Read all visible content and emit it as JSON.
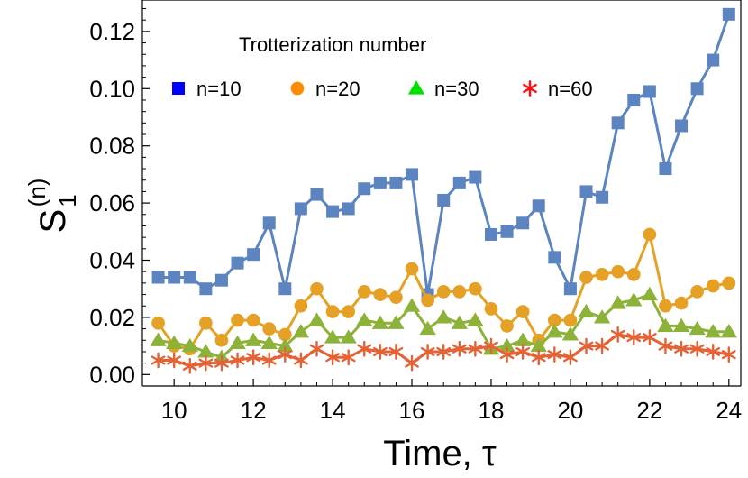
{
  "chart_data": {
    "type": "line",
    "xlabel": "Time, τ",
    "ylabel": {
      "base": "S",
      "subscript": "1",
      "superscript": "(n)"
    },
    "xlim": [
      9.2,
      24.3
    ],
    "ylim": [
      -0.004,
      0.131
    ],
    "xticks": [
      10,
      12,
      14,
      16,
      18,
      20,
      22,
      24
    ],
    "xtick_labels": [
      "10",
      "12",
      "14",
      "16",
      "18",
      "20",
      "22",
      "24"
    ],
    "yticks": [
      0.0,
      0.02,
      0.04,
      0.06,
      0.08,
      0.1,
      0.12
    ],
    "ytick_labels": [
      "0.00",
      "0.02",
      "0.04",
      "0.06",
      "0.08",
      "0.10",
      "0.12"
    ],
    "grid": false,
    "legend": {
      "title": "Trotterization number",
      "placement": "top-left"
    },
    "x": [
      9.6,
      10.0,
      10.4,
      10.8,
      11.2,
      11.6,
      12.0,
      12.4,
      12.8,
      13.2,
      13.6,
      14.0,
      14.4,
      14.8,
      15.2,
      15.6,
      16.0,
      16.4,
      16.8,
      17.2,
      17.6,
      18.0,
      18.4,
      18.8,
      19.2,
      19.6,
      20.0,
      20.4,
      20.8,
      21.2,
      21.6,
      22.0,
      22.4,
      22.8,
      23.2,
      23.6,
      24.0
    ],
    "series": [
      {
        "name": "n=10",
        "marker": "square",
        "line_color": "#5b84c0",
        "marker_color": "#5b84c0",
        "legend_marker_color": "#0000ff",
        "values": [
          0.034,
          0.034,
          0.034,
          0.03,
          0.033,
          0.039,
          0.042,
          0.053,
          0.03,
          0.058,
          0.063,
          0.057,
          0.058,
          0.065,
          0.067,
          0.067,
          0.07,
          0.028,
          0.061,
          0.067,
          0.069,
          0.049,
          0.05,
          0.053,
          0.059,
          0.041,
          0.03,
          0.064,
          0.062,
          0.088,
          0.096,
          0.099,
          0.072,
          0.087,
          0.1,
          0.11,
          0.126
        ]
      },
      {
        "name": "n=20",
        "marker": "circle",
        "line_color": "#e5a125",
        "marker_color": "#e5a125",
        "legend_marker_color": "#ff8c00",
        "values": [
          0.018,
          0.01,
          0.009,
          0.018,
          0.012,
          0.019,
          0.019,
          0.016,
          0.014,
          0.024,
          0.03,
          0.022,
          0.022,
          0.029,
          0.028,
          0.027,
          0.037,
          0.026,
          0.029,
          0.029,
          0.03,
          0.023,
          0.017,
          0.022,
          0.012,
          0.019,
          0.019,
          0.034,
          0.035,
          0.036,
          0.035,
          0.049,
          0.024,
          0.025,
          0.029,
          0.031,
          0.032
        ]
      },
      {
        "name": "n=30",
        "marker": "triangle",
        "line_color": "#8cb23a",
        "marker_color": "#8cb23a",
        "legend_marker_color": "#00e000",
        "values": [
          0.012,
          0.011,
          0.01,
          0.008,
          0.006,
          0.011,
          0.012,
          0.011,
          0.01,
          0.015,
          0.019,
          0.013,
          0.013,
          0.019,
          0.018,
          0.018,
          0.024,
          0.016,
          0.02,
          0.018,
          0.019,
          0.009,
          0.01,
          0.012,
          0.01,
          0.015,
          0.014,
          0.022,
          0.02,
          0.025,
          0.026,
          0.028,
          0.017,
          0.017,
          0.016,
          0.015,
          0.015
        ]
      },
      {
        "name": "n=60",
        "marker": "asterisk",
        "line_color": "#e36337",
        "marker_color": "#e36337",
        "legend_marker_color": "#ff1010",
        "values": [
          0.005,
          0.005,
          0.003,
          0.004,
          0.004,
          0.005,
          0.006,
          0.005,
          0.007,
          0.005,
          0.009,
          0.006,
          0.006,
          0.009,
          0.008,
          0.008,
          0.004,
          0.008,
          0.008,
          0.009,
          0.009,
          0.01,
          0.007,
          0.008,
          0.006,
          0.007,
          0.006,
          0.01,
          0.01,
          0.014,
          0.013,
          0.013,
          0.01,
          0.009,
          0.009,
          0.008,
          0.007
        ]
      }
    ]
  }
}
